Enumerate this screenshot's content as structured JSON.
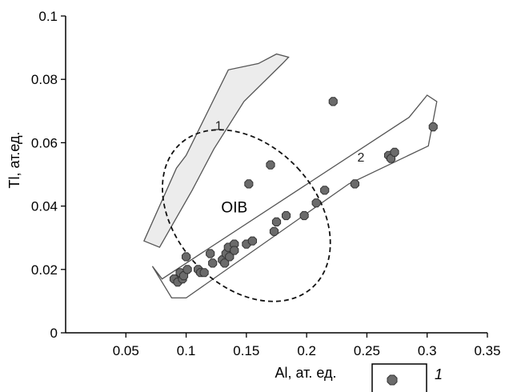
{
  "chart_data": {
    "type": "scatter",
    "xlabel": "Al, ат. ед.",
    "ylabel": "Tl, ат.ед.",
    "xlim": [
      0,
      0.35
    ],
    "ylim": [
      0,
      0.1
    ],
    "x_ticks": [
      "0.05",
      "0.1",
      "0.15",
      "0.2",
      "0.25",
      "0.3",
      "0.35"
    ],
    "y_ticks": [
      "0",
      "0.02",
      "0.04",
      "0.06",
      "0.08",
      "0.1"
    ],
    "grid": false,
    "colors": {
      "point": "#6b6b6b",
      "field1_fill": "#ececec",
      "outline": "#555555"
    },
    "fields": [
      {
        "label": "1",
        "polygon": [
          [
            0.065,
            0.029
          ],
          [
            0.078,
            0.027
          ],
          [
            0.105,
            0.045
          ],
          [
            0.123,
            0.058
          ],
          [
            0.148,
            0.073
          ],
          [
            0.18,
            0.085
          ],
          [
            0.185,
            0.087
          ],
          [
            0.175,
            0.088
          ],
          [
            0.16,
            0.085
          ],
          [
            0.135,
            0.083
          ],
          [
            0.1,
            0.056
          ],
          [
            0.092,
            0.052
          ]
        ],
        "label_pos": [
          0.127,
          0.064
        ]
      },
      {
        "label": "2",
        "polygon": [
          [
            0.072,
            0.021
          ],
          [
            0.08,
            0.017
          ],
          [
            0.285,
            0.068
          ],
          [
            0.3,
            0.075
          ],
          [
            0.308,
            0.073
          ],
          [
            0.301,
            0.059
          ],
          [
            0.235,
            0.047
          ],
          [
            0.1,
            0.011
          ],
          [
            0.088,
            0.011
          ]
        ],
        "label_pos": [
          0.245,
          0.054
        ]
      }
    ],
    "oib": {
      "label": "OIB",
      "center": [
        0.15,
        0.037
      ],
      "rx": 0.058,
      "ry": 0.014,
      "angle_deg": -43,
      "label_pos": [
        0.14,
        0.038
      ]
    },
    "series": [
      {
        "name": "1",
        "points": [
          [
            0.09,
            0.017
          ],
          [
            0.093,
            0.016
          ],
          [
            0.095,
            0.019
          ],
          [
            0.097,
            0.017
          ],
          [
            0.098,
            0.018
          ],
          [
            0.1,
            0.024
          ],
          [
            0.101,
            0.02
          ],
          [
            0.11,
            0.02
          ],
          [
            0.112,
            0.019
          ],
          [
            0.115,
            0.019
          ],
          [
            0.12,
            0.025
          ],
          [
            0.122,
            0.022
          ],
          [
            0.13,
            0.023
          ],
          [
            0.132,
            0.022
          ],
          [
            0.133,
            0.025
          ],
          [
            0.135,
            0.027
          ],
          [
            0.136,
            0.024
          ],
          [
            0.14,
            0.028
          ],
          [
            0.14,
            0.026
          ],
          [
            0.15,
            0.028
          ],
          [
            0.152,
            0.047
          ],
          [
            0.155,
            0.029
          ],
          [
            0.17,
            0.053
          ],
          [
            0.173,
            0.032
          ],
          [
            0.175,
            0.035
          ],
          [
            0.183,
            0.037
          ],
          [
            0.198,
            0.037
          ],
          [
            0.208,
            0.041
          ],
          [
            0.215,
            0.045
          ],
          [
            0.222,
            0.073
          ],
          [
            0.24,
            0.047
          ],
          [
            0.268,
            0.056
          ],
          [
            0.27,
            0.055
          ],
          [
            0.273,
            0.057
          ],
          [
            0.305,
            0.065
          ]
        ]
      }
    ],
    "legend": {
      "label": "1",
      "position": "bottom-right"
    }
  }
}
